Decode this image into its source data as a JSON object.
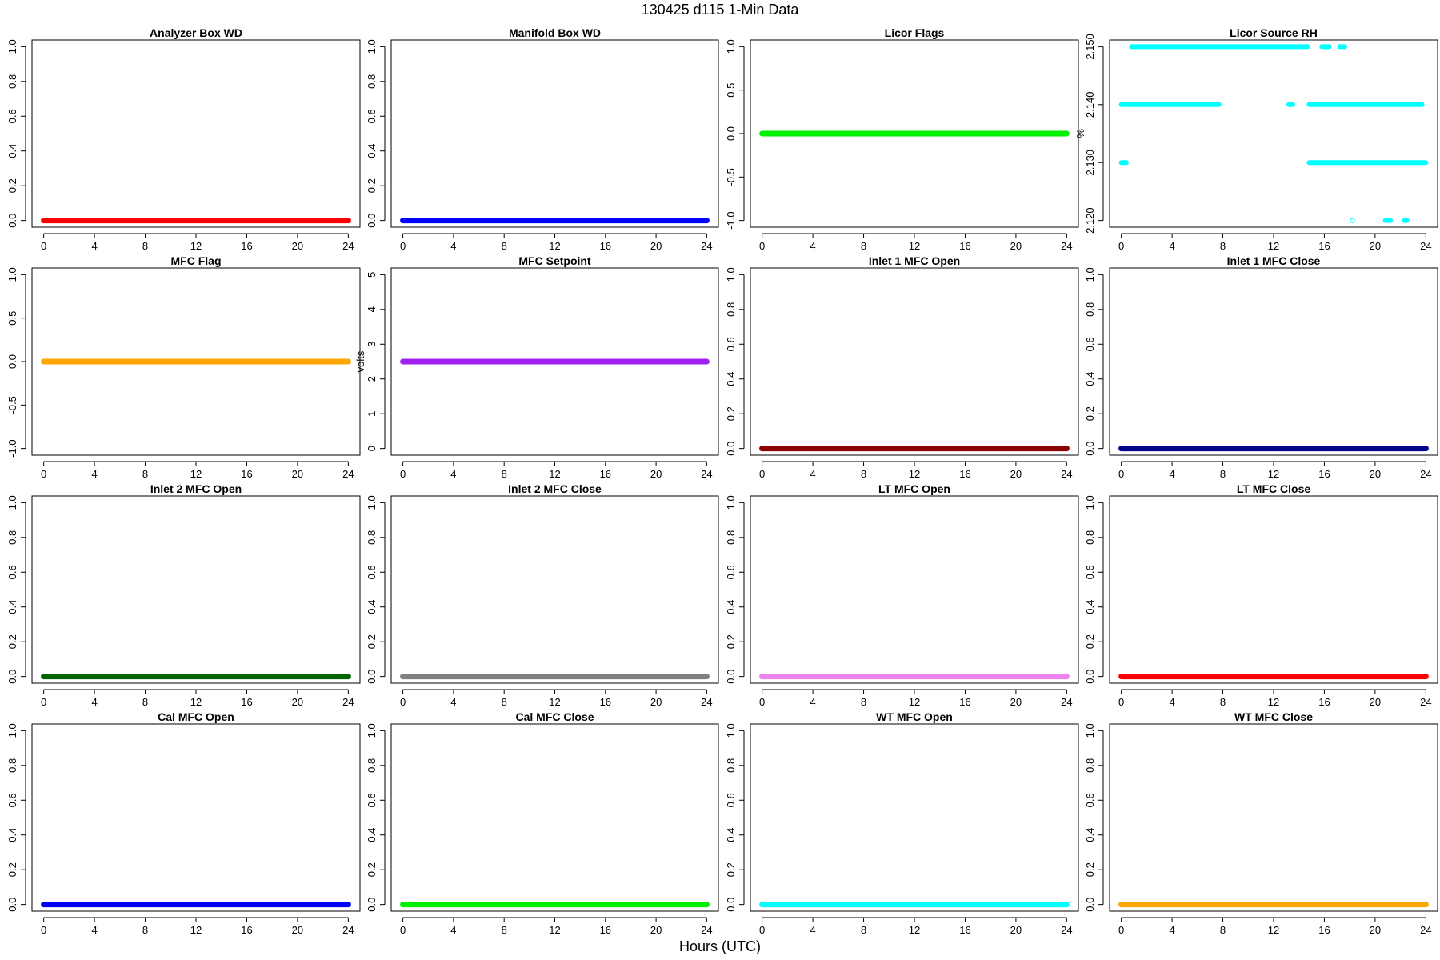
{
  "figure": {
    "title": "130425   d115   1-Min Data",
    "xlabel": "Hours (UTC)"
  },
  "chart_data": [
    {
      "type": "scatter",
      "title": "Analyzer Box WD",
      "color": "#ff0000",
      "ylabel": "",
      "xlim": [
        0,
        24
      ],
      "xticks": [
        0,
        4,
        8,
        12,
        16,
        20,
        24
      ],
      "ylim": [
        0,
        1
      ],
      "yticks": [
        "0.0",
        "0.2",
        "0.4",
        "0.6",
        "0.8",
        "1.0"
      ],
      "series": [
        {
          "x_range": [
            0,
            24
          ],
          "y": 0
        }
      ]
    },
    {
      "type": "scatter",
      "title": "Manifold Box WD",
      "color": "#0000ff",
      "ylabel": "",
      "xlim": [
        0,
        24
      ],
      "xticks": [
        0,
        4,
        8,
        12,
        16,
        20,
        24
      ],
      "ylim": [
        0,
        1
      ],
      "yticks": [
        "0.0",
        "0.2",
        "0.4",
        "0.6",
        "0.8",
        "1.0"
      ],
      "series": [
        {
          "x_range": [
            0,
            24
          ],
          "y": 0
        }
      ]
    },
    {
      "type": "scatter",
      "title": "Licor Flags",
      "color": "#00ee00",
      "ylabel": "",
      "xlim": [
        0,
        24
      ],
      "xticks": [
        0,
        4,
        8,
        12,
        16,
        20,
        24
      ],
      "ylim": [
        -1,
        1
      ],
      "yticks": [
        "-1.0",
        "-0.5",
        "0.0",
        "0.5",
        "1.0"
      ],
      "series": [
        {
          "x_range": [
            0,
            24
          ],
          "y": 0
        }
      ]
    },
    {
      "type": "scatter",
      "title": "Licor Source RH",
      "color": "#00ffff",
      "ylabel": "%",
      "xlim": [
        0,
        24
      ],
      "xticks": [
        0,
        4,
        8,
        12,
        16,
        20,
        24
      ],
      "ylim": [
        2.12,
        2.15
      ],
      "yticks": [
        "2.120",
        "2.130",
        "2.140",
        "2.150"
      ],
      "levels": [
        {
          "y": 2.15,
          "segments": [
            [
              0.8,
              14.7
            ],
            [
              15.8,
              16.4
            ],
            [
              17.2,
              17.6
            ]
          ]
        },
        {
          "y": 2.14,
          "segments": [
            [
              0,
              7.7
            ],
            [
              13.2,
              13.5
            ],
            [
              14.8,
              23.7
            ]
          ]
        },
        {
          "y": 2.13,
          "segments": [
            [
              0,
              0.4
            ],
            [
              14.8,
              24
            ]
          ]
        },
        {
          "y": 2.12,
          "segments": [
            [
              18.2,
              18.2
            ],
            [
              20.8,
              21.2
            ],
            [
              22.3,
              22.5
            ]
          ]
        }
      ]
    },
    {
      "type": "scatter",
      "title": "MFC Flag",
      "color": "#ffa500",
      "ylabel": "",
      "xlim": [
        0,
        24
      ],
      "xticks": [
        0,
        4,
        8,
        12,
        16,
        20,
        24
      ],
      "ylim": [
        -1,
        1
      ],
      "yticks": [
        "-1.0",
        "-0.5",
        "0.0",
        "0.5",
        "1.0"
      ],
      "series": [
        {
          "x_range": [
            0,
            24
          ],
          "y": 0
        }
      ]
    },
    {
      "type": "scatter",
      "title": "MFC Setpoint",
      "color": "#a020f0",
      "ylabel": "volts",
      "xlim": [
        0,
        24
      ],
      "xticks": [
        0,
        4,
        8,
        12,
        16,
        20,
        24
      ],
      "ylim": [
        0,
        5
      ],
      "yticks": [
        "0",
        "1",
        "2",
        "3",
        "4",
        "5"
      ],
      "series": [
        {
          "x_range": [
            0,
            24
          ],
          "y": 2.5
        }
      ]
    },
    {
      "type": "scatter",
      "title": "Inlet 1 MFC Open",
      "color": "#8b0000",
      "ylabel": "",
      "xlim": [
        0,
        24
      ],
      "xticks": [
        0,
        4,
        8,
        12,
        16,
        20,
        24
      ],
      "ylim": [
        0,
        1
      ],
      "yticks": [
        "0.0",
        "0.2",
        "0.4",
        "0.6",
        "0.8",
        "1.0"
      ],
      "series": [
        {
          "x_range": [
            0,
            24
          ],
          "y": 0
        }
      ]
    },
    {
      "type": "scatter",
      "title": "Inlet 1 MFC Close",
      "color": "#00008b",
      "ylabel": "",
      "xlim": [
        0,
        24
      ],
      "xticks": [
        0,
        4,
        8,
        12,
        16,
        20,
        24
      ],
      "ylim": [
        0,
        1
      ],
      "yticks": [
        "0.0",
        "0.2",
        "0.4",
        "0.6",
        "0.8",
        "1.0"
      ],
      "series": [
        {
          "x_range": [
            0,
            24
          ],
          "y": 0
        }
      ]
    },
    {
      "type": "scatter",
      "title": "Inlet 2 MFC Open",
      "color": "#006400",
      "ylabel": "",
      "xlim": [
        0,
        24
      ],
      "xticks": [
        0,
        4,
        8,
        12,
        16,
        20,
        24
      ],
      "ylim": [
        0,
        1
      ],
      "yticks": [
        "0.0",
        "0.2",
        "0.4",
        "0.6",
        "0.8",
        "1.0"
      ],
      "series": [
        {
          "x_range": [
            0,
            24
          ],
          "y": 0
        }
      ]
    },
    {
      "type": "scatter",
      "title": "Inlet 2 MFC Close",
      "color": "#808080",
      "ylabel": "",
      "xlim": [
        0,
        24
      ],
      "xticks": [
        0,
        4,
        8,
        12,
        16,
        20,
        24
      ],
      "ylim": [
        0,
        1
      ],
      "yticks": [
        "0.0",
        "0.2",
        "0.4",
        "0.6",
        "0.8",
        "1.0"
      ],
      "series": [
        {
          "x_range": [
            0,
            24
          ],
          "y": 0
        }
      ]
    },
    {
      "type": "scatter",
      "title": "LT MFC Open",
      "color": "#ee82ee",
      "ylabel": "",
      "xlim": [
        0,
        24
      ],
      "xticks": [
        0,
        4,
        8,
        12,
        16,
        20,
        24
      ],
      "ylim": [
        0,
        1
      ],
      "yticks": [
        "0.0",
        "0.2",
        "0.4",
        "0.6",
        "0.8",
        "1.0"
      ],
      "series": [
        {
          "x_range": [
            0,
            24
          ],
          "y": 0
        }
      ]
    },
    {
      "type": "scatter",
      "title": "LT MFC Close",
      "color": "#ff0000",
      "ylabel": "",
      "xlim": [
        0,
        24
      ],
      "xticks": [
        0,
        4,
        8,
        12,
        16,
        20,
        24
      ],
      "ylim": [
        0,
        1
      ],
      "yticks": [
        "0.0",
        "0.2",
        "0.4",
        "0.6",
        "0.8",
        "1.0"
      ],
      "series": [
        {
          "x_range": [
            0,
            24
          ],
          "y": 0
        }
      ]
    },
    {
      "type": "scatter",
      "title": "Cal MFC Open",
      "color": "#0000ff",
      "ylabel": "",
      "xlim": [
        0,
        24
      ],
      "xticks": [
        0,
        4,
        8,
        12,
        16,
        20,
        24
      ],
      "ylim": [
        0,
        1
      ],
      "yticks": [
        "0.0",
        "0.2",
        "0.4",
        "0.6",
        "0.8",
        "1.0"
      ],
      "series": [
        {
          "x_range": [
            0,
            24
          ],
          "y": 0
        }
      ]
    },
    {
      "type": "scatter",
      "title": "Cal MFC Close",
      "color": "#00ee00",
      "ylabel": "",
      "xlim": [
        0,
        24
      ],
      "xticks": [
        0,
        4,
        8,
        12,
        16,
        20,
        24
      ],
      "ylim": [
        0,
        1
      ],
      "yticks": [
        "0.0",
        "0.2",
        "0.4",
        "0.6",
        "0.8",
        "1.0"
      ],
      "series": [
        {
          "x_range": [
            0,
            24
          ],
          "y": 0
        }
      ]
    },
    {
      "type": "scatter",
      "title": "WT MFC Open",
      "color": "#00ffff",
      "ylabel": "",
      "xlim": [
        0,
        24
      ],
      "xticks": [
        0,
        4,
        8,
        12,
        16,
        20,
        24
      ],
      "ylim": [
        0,
        1
      ],
      "yticks": [
        "0.0",
        "0.2",
        "0.4",
        "0.6",
        "0.8",
        "1.0"
      ],
      "series": [
        {
          "x_range": [
            0,
            24
          ],
          "y": 0
        }
      ]
    },
    {
      "type": "scatter",
      "title": "WT MFC Close",
      "color": "#ffa500",
      "ylabel": "",
      "xlim": [
        0,
        24
      ],
      "xticks": [
        0,
        4,
        8,
        12,
        16,
        20,
        24
      ],
      "ylim": [
        0,
        1
      ],
      "yticks": [
        "0.0",
        "0.2",
        "0.4",
        "0.6",
        "0.8",
        "1.0"
      ],
      "series": [
        {
          "x_range": [
            0,
            24
          ],
          "y": 0
        }
      ]
    }
  ]
}
